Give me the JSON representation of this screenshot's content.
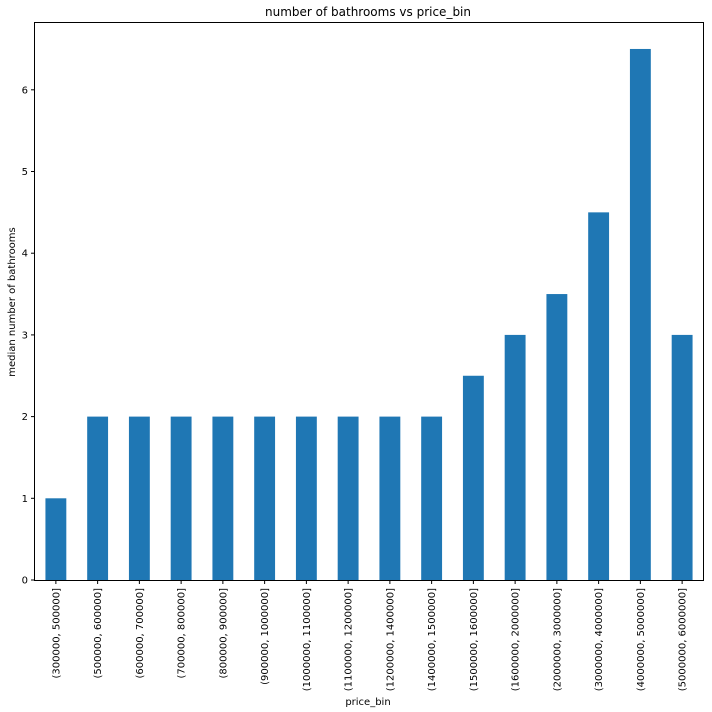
{
  "chart_data": {
    "type": "bar",
    "title": "number of bathrooms vs price_bin",
    "xlabel": "price_bin",
    "ylabel": "median number of bathrooms",
    "categories": [
      "(300000, 500000]",
      "(500000, 600000]",
      "(600000, 700000]",
      "(700000, 800000]",
      "(800000, 900000]",
      "(900000, 1000000]",
      "(1000000, 1100000]",
      "(1100000, 1200000]",
      "(1200000, 1400000]",
      "(1400000, 1500000]",
      "(1500000, 1600000]",
      "(1600000, 2000000]",
      "(2000000, 3000000]",
      "(3000000, 4000000]",
      "(4000000, 5000000]",
      "(5000000, 6000000]"
    ],
    "values": [
      1,
      2,
      2,
      2,
      2,
      2,
      2,
      2,
      2,
      2,
      2.5,
      3,
      3.5,
      4.5,
      6.5,
      3
    ],
    "ylim": [
      0,
      6.83
    ],
    "yticks": [
      "0",
      "1",
      "2",
      "3",
      "4",
      "5",
      "6"
    ],
    "grid": false,
    "bar_color": "#1f77b4"
  }
}
